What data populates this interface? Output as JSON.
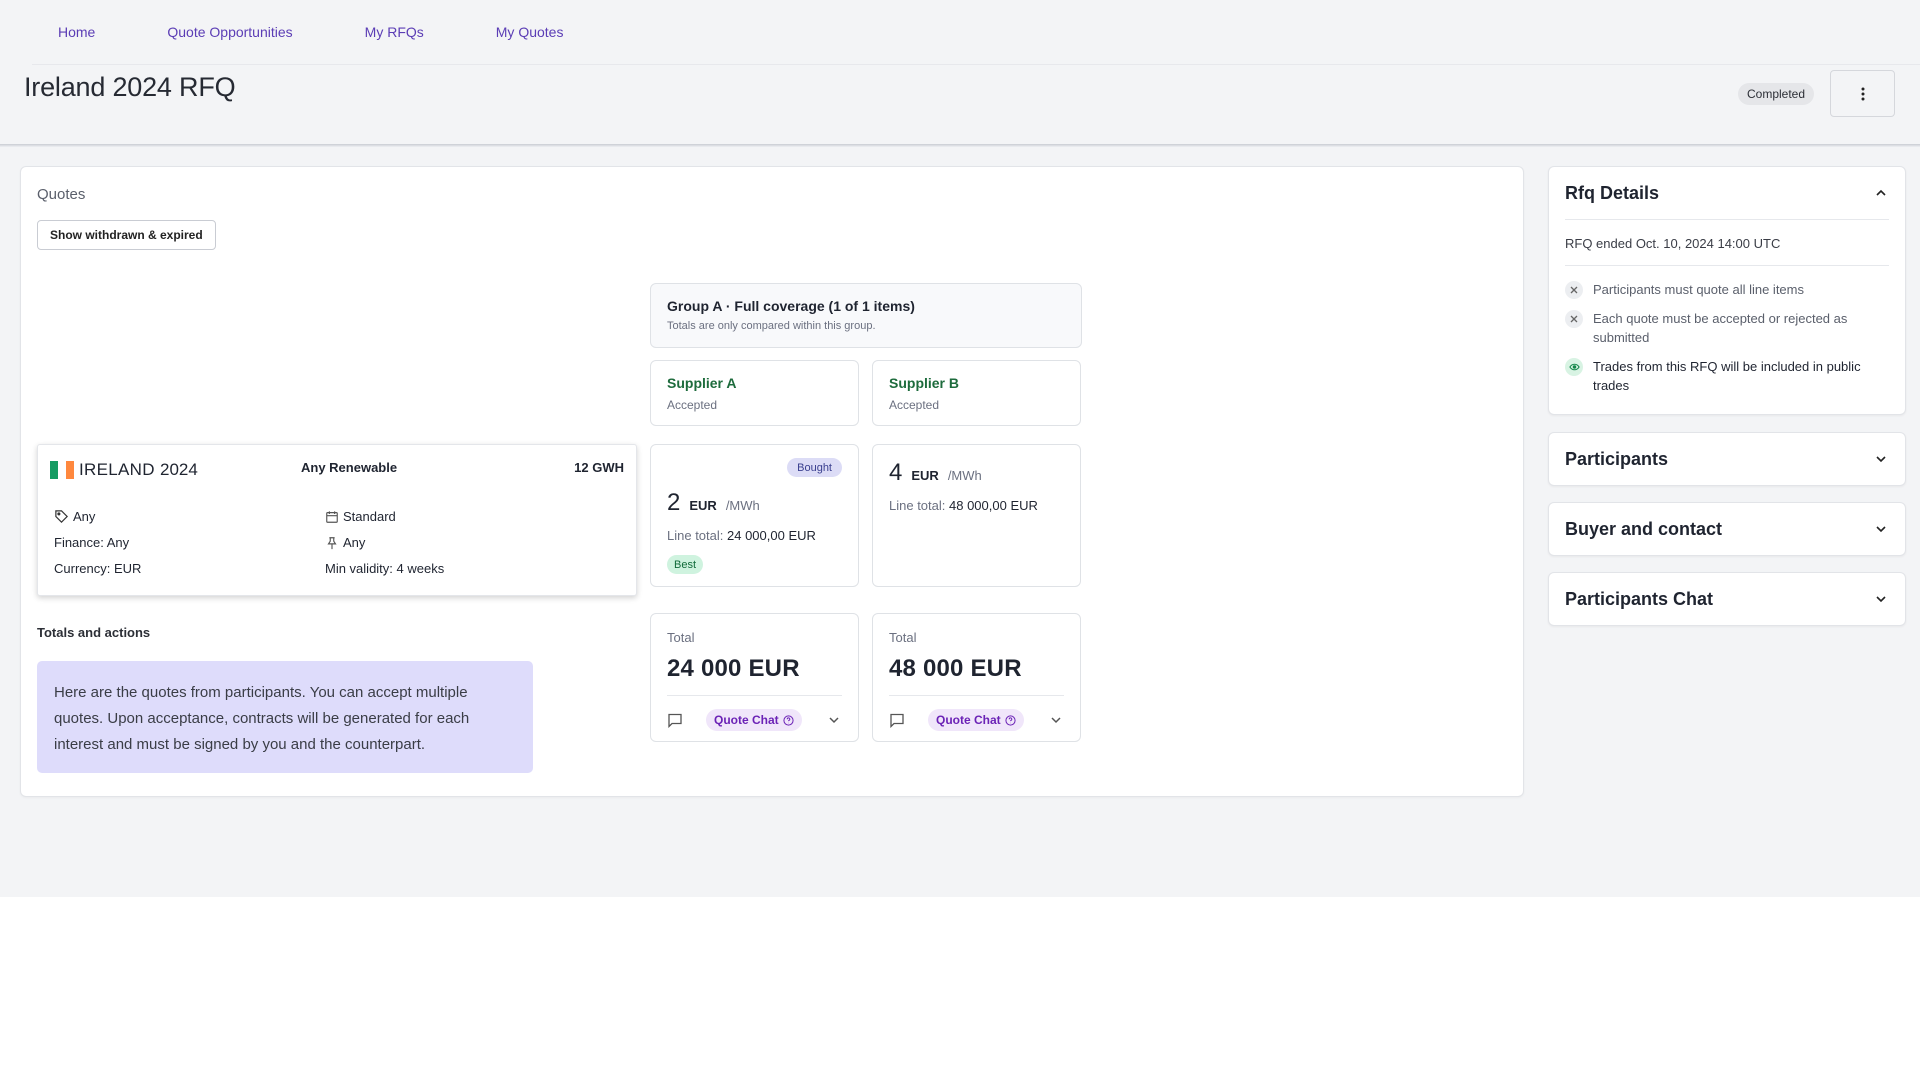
{
  "nav": {
    "items": [
      "Home",
      "Quote Opportunities",
      "My RFQs",
      "My Quotes"
    ]
  },
  "header": {
    "title": "Ireland 2024 RFQ",
    "status": "Completed"
  },
  "quotes": {
    "title": "Quotes",
    "show_button": "Show withdrawn & expired",
    "group": {
      "title": "Group A · Full coverage (1 of 1 items)",
      "subtitle": "Totals are only compared within this group."
    },
    "line_item": {
      "country": "IRELAND",
      "year": "2024",
      "technology": "Any Renewable",
      "volume": "12 GWH",
      "label": "Any",
      "finance": "Finance: Any",
      "currency": "Currency: EUR",
      "contract": "Standard",
      "support": "Any",
      "min_validity": "Min validity: 4 weeks",
      "flag_colors": [
        "#169b62",
        "#ffffff",
        "#ff883e"
      ]
    },
    "suppliers": [
      {
        "name": "Supplier A",
        "status": "Accepted",
        "badge": "Bought",
        "price": "2",
        "currency": "EUR",
        "unit": "/MWh",
        "line_total_label": "Line total:",
        "line_total": "24 000,00 EUR",
        "best": "Best",
        "total_label": "Total",
        "total": "24 000 EUR",
        "chat_label": "Quote Chat"
      },
      {
        "name": "Supplier B",
        "status": "Accepted",
        "price": "4",
        "currency": "EUR",
        "unit": "/MWh",
        "line_total_label": "Line total:",
        "line_total": "48 000,00 EUR",
        "total_label": "Total",
        "total": "48 000 EUR",
        "chat_label": "Quote Chat"
      }
    ],
    "totals_heading": "Totals and actions",
    "info_text": "Here are the quotes from participants. You can accept multiple quotes. Upon acceptance, contracts will be generated for each interest and must be signed by you and the counterpart."
  },
  "sidebar": {
    "rfq_details": {
      "title": "Rfq Details",
      "ended": "RFQ ended Oct. 10, 2024 14:00 UTC",
      "rules": [
        {
          "text": "Participants must quote all line items",
          "enabled": false
        },
        {
          "text": "Each quote must be accepted or rejected as submitted",
          "enabled": false
        },
        {
          "text": "Trades from this RFQ will be included in public trades",
          "enabled": true
        }
      ]
    },
    "sections": [
      "Participants",
      "Buyer and contact",
      "Participants Chat"
    ]
  },
  "colors": {
    "accent": "#5b3db5",
    "supplier_green": "#1d6b3c",
    "info_bg": "#dedcfb"
  }
}
